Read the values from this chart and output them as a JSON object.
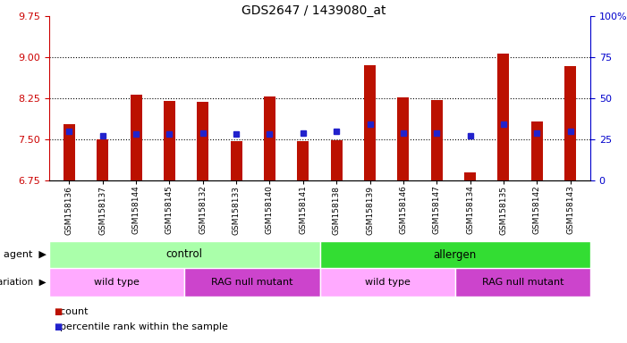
{
  "title": "GDS2647 / 1439080_at",
  "samples": [
    "GSM158136",
    "GSM158137",
    "GSM158144",
    "GSM158145",
    "GSM158132",
    "GSM158133",
    "GSM158140",
    "GSM158141",
    "GSM158138",
    "GSM158139",
    "GSM158146",
    "GSM158147",
    "GSM158134",
    "GSM158135",
    "GSM158142",
    "GSM158143"
  ],
  "count_values": [
    7.78,
    7.5,
    8.32,
    8.2,
    8.18,
    7.47,
    8.28,
    7.47,
    7.48,
    8.85,
    8.26,
    8.22,
    6.9,
    9.07,
    7.82,
    8.83
  ],
  "percentile_values": [
    30,
    27,
    28,
    28,
    29,
    28,
    28,
    29,
    30,
    34,
    29,
    29,
    27,
    34,
    29,
    30
  ],
  "ylim_left": [
    6.75,
    9.75
  ],
  "ylim_right": [
    0,
    100
  ],
  "yticks_left": [
    6.75,
    7.5,
    8.25,
    9.0,
    9.75
  ],
  "yticks_right": [
    0,
    25,
    50,
    75,
    100
  ],
  "ytick_labels_right": [
    "0",
    "25",
    "50",
    "75",
    "100%"
  ],
  "bar_color": "#bb1100",
  "percentile_color": "#2222cc",
  "bar_width": 0.35,
  "hgrid_lines": [
    7.5,
    8.25,
    9.0
  ],
  "agent_groups": [
    {
      "label": "control",
      "start": 0,
      "end": 8,
      "color": "#aaffaa"
    },
    {
      "label": "allergen",
      "start": 8,
      "end": 16,
      "color": "#33dd33"
    }
  ],
  "genotype_groups": [
    {
      "label": "wild type",
      "start": 0,
      "end": 4,
      "color": "#ffaaff"
    },
    {
      "label": "RAG null mutant",
      "start": 4,
      "end": 8,
      "color": "#cc44cc"
    },
    {
      "label": "wild type",
      "start": 8,
      "end": 12,
      "color": "#ffaaff"
    },
    {
      "label": "RAG null mutant",
      "start": 12,
      "end": 16,
      "color": "#cc44cc"
    }
  ],
  "legend_count_color": "#bb1100",
  "legend_percentile_color": "#2222cc",
  "left_label_color": "#cc0000",
  "right_label_color": "#0000cc"
}
